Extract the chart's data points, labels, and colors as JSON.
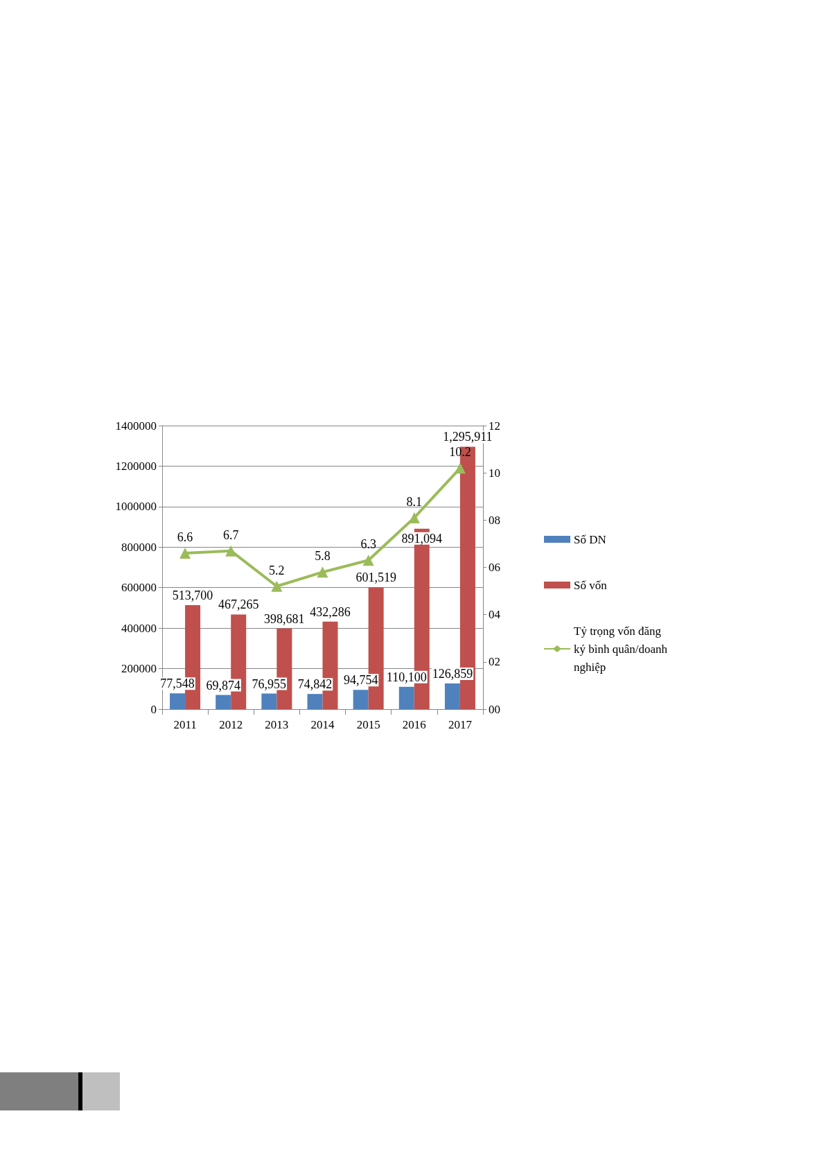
{
  "chart_data": {
    "type": "bar",
    "categories": [
      "2011",
      "2012",
      "2013",
      "2014",
      "2015",
      "2016",
      "2017"
    ],
    "series": [
      {
        "name": "Số DN",
        "color": "#4f81bd",
        "values": [
          77548,
          69874,
          76955,
          74842,
          94754,
          110100,
          126859
        ],
        "value_labels": [
          "77,548",
          "69,874",
          "76,955",
          "74,842",
          "94,754",
          "110,100",
          "126,859"
        ]
      },
      {
        "name": "Số vốn",
        "color": "#c0504d",
        "values": [
          513700,
          467265,
          398681,
          432286,
          601519,
          891094,
          1295911
        ],
        "value_labels": [
          "513,700",
          "467,265",
          "398,681",
          "432,286",
          "601,519",
          "891,094",
          "1,295,911"
        ]
      },
      {
        "name": "Tỷ trọng vốn đăng ký bình quân/doanh nghiệp",
        "type": "line",
        "axis": "y2",
        "color": "#9bbb59",
        "marker": "triangle",
        "values": [
          6.6,
          6.7,
          5.2,
          5.8,
          6.3,
          8.1,
          10.2
        ],
        "value_labels": [
          "6.6",
          "6.7",
          "5.2",
          "5.8",
          "6.3",
          "8.1",
          "10.2"
        ]
      }
    ],
    "ylim": [
      0,
      1400000
    ],
    "yticks": [
      0,
      200000,
      400000,
      600000,
      800000,
      1000000,
      1200000,
      1400000
    ],
    "y2lim": [
      0,
      12
    ],
    "y2ticks": [
      {
        "value": 0,
        "label": "00"
      },
      {
        "value": 2,
        "label": "02"
      },
      {
        "value": 4,
        "label": "04"
      },
      {
        "value": 6,
        "label": "06"
      },
      {
        "value": 8,
        "label": "08"
      },
      {
        "value": 10,
        "label": "10"
      },
      {
        "value": 12,
        "label": "12"
      }
    ],
    "grid": "y",
    "legend": "right"
  }
}
